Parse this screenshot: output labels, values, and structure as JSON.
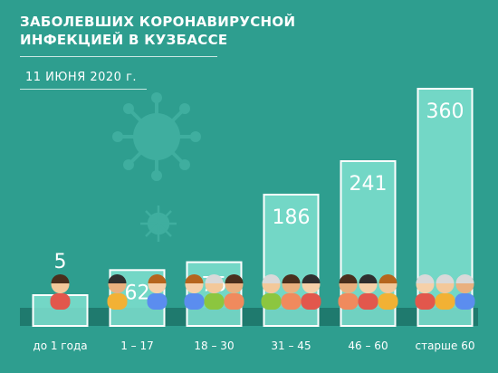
{
  "header": {
    "title": "ЗАБОЛЕВШИХ КОРОНАВИРУСНОЙ\nИНФЕКЦИЕЙ В КУЗБАССЕ",
    "date": "11 ИЮНЯ 2020 г."
  },
  "colors": {
    "background": "#2e9e8f",
    "bar_fill": "#7fe0d0",
    "bar_border": "#ffffff",
    "base_band": "#1f7a6e",
    "virus": "#3fae9f"
  },
  "chart_data": {
    "type": "bar",
    "title": "ЗАБОЛЕВШИХ КОРОНАВИРУСНОЙ ИНФЕКЦИЕЙ В КУЗБАССЕ",
    "subtitle": "11 ИЮНЯ 2020 г.",
    "categories": [
      "до 1 года",
      "1 – 17",
      "18 – 30",
      "31 – 45",
      "46 – 60",
      "старше 60"
    ],
    "values": [
      5,
      62,
      75,
      186,
      241,
      360
    ],
    "icons": [
      "baby-icon",
      "children-icon",
      "young-adults-icon",
      "adults-icon",
      "middle-aged-icon",
      "elderly-icon"
    ],
    "xlabel": "",
    "ylabel": "",
    "grid": false,
    "legend": "none"
  }
}
